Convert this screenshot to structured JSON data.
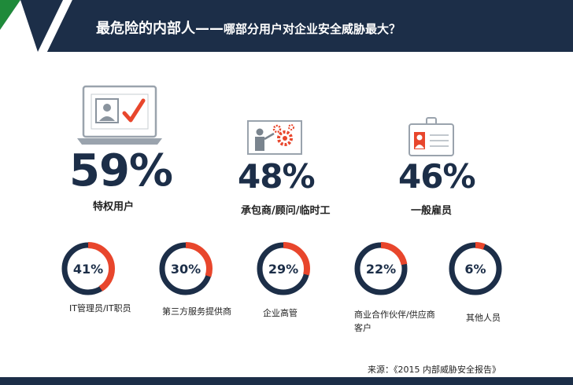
{
  "header": {
    "title": "最危险的内部人——",
    "subtitle": "哪部分用户对企业安全威胁最大？",
    "colors": {
      "navy": "#1c2e48",
      "green": "#1f8a3a",
      "red": "#e8462c",
      "gray": "#9aa3ad"
    }
  },
  "chart_data": [
    {
      "type": "table",
      "title": "",
      "rows": [
        {
          "label": "特权用户",
          "value": 59,
          "display": "59%",
          "icon": "laptop-user-check-icon"
        },
        {
          "label": "承包商/顾问/临时工",
          "value": 48,
          "display": "48%",
          "icon": "presenter-gear-icon"
        },
        {
          "label": "一般雇员",
          "value": 46,
          "display": "46%",
          "icon": "id-badge-icon"
        }
      ]
    },
    {
      "type": "pie",
      "title": "",
      "slices": [
        {
          "label": "IT管理员/IT职员",
          "value": 41,
          "display": "41%"
        },
        {
          "label": "第三方服务提供商",
          "value": 30,
          "display": "30%"
        },
        {
          "label": "企业高管",
          "value": 29,
          "display": "29%"
        },
        {
          "label": "商业合作伙伴/供应商客户",
          "value": 22,
          "display": "22%"
        },
        {
          "label": "其他人员",
          "value": 6,
          "display": "6%"
        }
      ]
    }
  ],
  "source": "来源：《2015 内部威胁安全报告》"
}
